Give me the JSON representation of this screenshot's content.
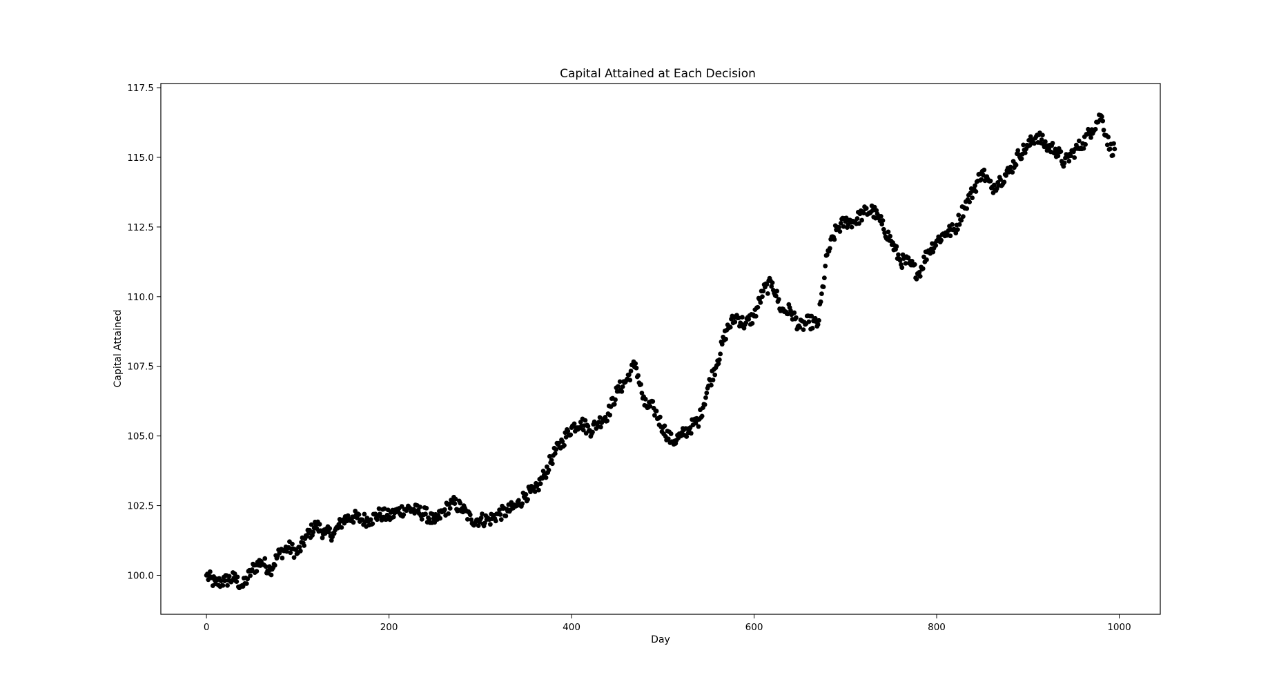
{
  "chart_data": {
    "type": "scatter",
    "title": "Capital Attained at Each Decision",
    "xlabel": "Day",
    "ylabel": "Capital Attained",
    "xlim": [
      -50,
      1045
    ],
    "ylim": [
      98.6,
      117.65
    ],
    "xticks": [
      0,
      200,
      400,
      600,
      800,
      1000
    ],
    "xtick_labels": [
      "0",
      "200",
      "400",
      "600",
      "800",
      "1000"
    ],
    "yticks": [
      100.0,
      102.5,
      105.0,
      107.5,
      110.0,
      112.5,
      115.0,
      117.5
    ],
    "ytick_labels": [
      "100.0",
      "102.5",
      "105.0",
      "107.5",
      "110.0",
      "112.5",
      "115.0",
      "117.5"
    ],
    "grid": false,
    "legend": "none",
    "marker_color": "#000000",
    "series": [
      {
        "x": [
          0,
          10,
          20,
          30,
          40,
          50,
          60,
          70,
          80,
          90,
          100,
          110,
          120,
          130,
          140,
          150,
          160,
          170,
          180,
          190,
          200,
          210,
          220,
          230,
          240,
          250,
          260,
          270,
          280,
          290,
          300,
          310,
          320,
          330,
          340,
          350,
          360,
          370,
          380,
          390,
          400,
          410,
          420,
          430,
          440,
          450,
          460,
          470,
          480,
          490,
          500,
          510,
          520,
          530,
          540,
          550,
          560,
          570,
          580,
          590,
          600,
          610,
          620,
          630,
          640,
          650,
          660,
          670,
          680,
          690,
          700,
          710,
          720,
          730,
          740,
          750,
          760,
          770,
          780,
          790,
          800,
          810,
          820,
          830,
          840,
          850,
          860,
          870,
          880,
          890,
          900,
          910,
          920,
          930,
          940,
          950,
          960,
          970,
          980,
          990,
          995
        ],
        "y": [
          100.0,
          99.7,
          99.8,
          99.9,
          99.6,
          100.2,
          100.5,
          100.2,
          100.8,
          101.0,
          100.8,
          101.4,
          101.8,
          101.5,
          101.5,
          102.0,
          102.1,
          102.0,
          102.0,
          102.2,
          102.1,
          102.3,
          102.4,
          102.3,
          102.2,
          101.9,
          102.3,
          102.6,
          102.4,
          102.0,
          102.0,
          102.0,
          102.2,
          102.3,
          102.5,
          102.9,
          103.0,
          103.6,
          104.3,
          104.8,
          105.3,
          105.5,
          105.2,
          105.5,
          105.8,
          106.6,
          107.0,
          107.6,
          106.1,
          106.0,
          105.3,
          104.8,
          105.0,
          105.3,
          105.6,
          106.8,
          107.7,
          108.8,
          109.3,
          109.0,
          109.3,
          110.2,
          110.5,
          109.5,
          109.5,
          108.9,
          109.1,
          109.0,
          111.5,
          112.4,
          112.7,
          112.7,
          113.0,
          113.1,
          112.6,
          112.0,
          111.3,
          111.2,
          110.8,
          111.6,
          112.0,
          112.3,
          112.4,
          113.2,
          113.8,
          114.5,
          113.9,
          114.2,
          114.5,
          115.1,
          115.4,
          115.8,
          115.4,
          115.3,
          114.8,
          115.2,
          115.5,
          116.0,
          116.5,
          115.3,
          115.3
        ]
      }
    ]
  }
}
